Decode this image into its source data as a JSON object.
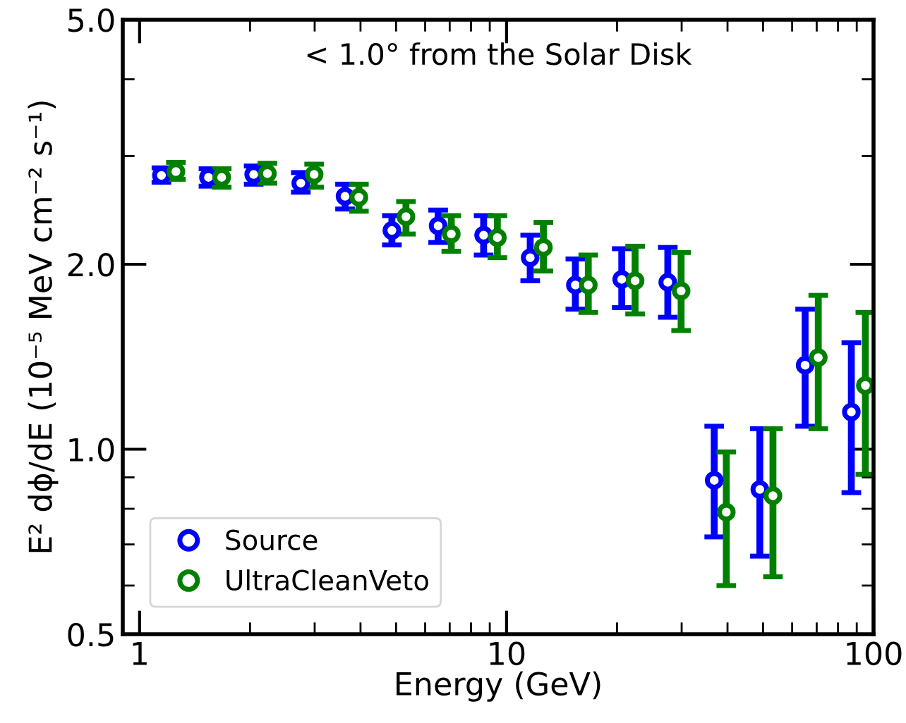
{
  "chart_data": {
    "type": "scatter",
    "xlabel": "Energy (GeV)",
    "ylabel": "E² dϕ/dE (10⁻⁵ MeV cm⁻² s⁻¹)",
    "annotations": [
      "< 1.0° from the Solar Disk"
    ],
    "log": "xy",
    "xlim": [
      0.9,
      100
    ],
    "xticks": [
      1,
      10,
      100
    ],
    "ylim": [
      0.5,
      5.0
    ],
    "yticks": [
      0.5,
      {
        "value": 1,
        "label": "1.0"
      },
      {
        "value": 2,
        "label": "2.0"
      },
      {
        "value": 5,
        "label": "5.0"
      }
    ],
    "grid": false,
    "legend": "bottom left",
    "marker": "circle",
    "series": [
      {
        "name": "Source",
        "color": "#0000ff",
        "x": [
          1.147,
          1.541,
          2.046,
          2.75,
          3.63,
          4.87,
          6.51,
          8.66,
          11.6,
          15.4,
          20.6,
          27.5,
          36.8,
          49.0,
          65.1,
          87.0
        ],
        "values": [
          2.79,
          2.77,
          2.8,
          2.71,
          2.58,
          2.27,
          2.31,
          2.23,
          2.05,
          1.85,
          1.89,
          1.87,
          0.89,
          0.86,
          1.37,
          1.15
        ],
        "errors": [
          [
            2.72,
            2.87
          ],
          [
            2.68,
            2.86
          ],
          [
            2.7,
            2.89
          ],
          [
            2.62,
            2.82
          ],
          [
            2.46,
            2.7
          ],
          [
            2.15,
            2.4
          ],
          [
            2.17,
            2.45
          ],
          [
            2.07,
            2.4
          ],
          [
            1.88,
            2.23
          ],
          [
            1.69,
            2.04
          ],
          [
            1.7,
            2.12
          ],
          [
            1.64,
            2.13
          ],
          [
            0.72,
            1.09
          ],
          [
            0.67,
            1.08
          ],
          [
            1.09,
            1.69
          ],
          [
            0.85,
            1.49
          ]
        ]
      },
      {
        "name": "UltraCleanVeto",
        "color": "#008000",
        "x": [
          1.256,
          1.674,
          2.23,
          2.99,
          3.96,
          5.32,
          7.07,
          9.44,
          12.6,
          16.7,
          22.4,
          29.9,
          39.7,
          53.2,
          70.7,
          95.0
        ],
        "values": [
          2.83,
          2.77,
          2.81,
          2.8,
          2.57,
          2.39,
          2.24,
          2.21,
          2.13,
          1.85,
          1.88,
          1.81,
          0.79,
          0.84,
          1.41,
          1.27
        ],
        "errors": [
          [
            2.75,
            2.93
          ],
          [
            2.67,
            2.86
          ],
          [
            2.71,
            2.92
          ],
          [
            2.67,
            2.91
          ],
          [
            2.44,
            2.7
          ],
          [
            2.24,
            2.53
          ],
          [
            2.1,
            2.4
          ],
          [
            2.05,
            2.4
          ],
          [
            1.95,
            2.34
          ],
          [
            1.67,
            2.07
          ],
          [
            1.66,
            2.14
          ],
          [
            1.56,
            2.09
          ],
          [
            0.6,
            0.99
          ],
          [
            0.62,
            1.08
          ],
          [
            1.08,
            1.78
          ],
          [
            0.91,
            1.67
          ]
        ]
      }
    ]
  }
}
